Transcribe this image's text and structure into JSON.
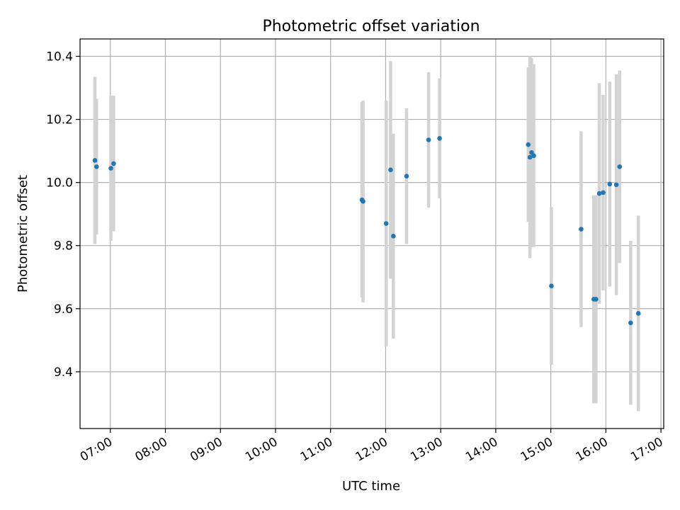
{
  "chart_data": {
    "type": "scatter",
    "title": "Photometric offset variation",
    "xlabel": "UTC time",
    "ylabel": "Photometric offset",
    "x_unit": "hours UTC",
    "xlim": [
      6.45,
      17.05
    ],
    "ylim": [
      9.22,
      10.455
    ],
    "x_ticks": [
      {
        "value": 7,
        "label": "07:00"
      },
      {
        "value": 8,
        "label": "08:00"
      },
      {
        "value": 9,
        "label": "09:00"
      },
      {
        "value": 10,
        "label": "10:00"
      },
      {
        "value": 11,
        "label": "11:00"
      },
      {
        "value": 12,
        "label": "12:00"
      },
      {
        "value": 13,
        "label": "13:00"
      },
      {
        "value": 14,
        "label": "14:00"
      },
      {
        "value": 15,
        "label": "15:00"
      },
      {
        "value": 16,
        "label": "16:00"
      },
      {
        "value": 17,
        "label": "17:00"
      }
    ],
    "y_ticks": [
      {
        "value": 9.4,
        "label": "9.4"
      },
      {
        "value": 9.6,
        "label": "9.6"
      },
      {
        "value": 9.8,
        "label": "9.8"
      },
      {
        "value": 10.0,
        "label": "10.0"
      },
      {
        "value": 10.2,
        "label": "10.2"
      },
      {
        "value": 10.4,
        "label": "10.4"
      }
    ],
    "grid": true,
    "marker_color": "#1f77b4",
    "errorbar_color": "#d3d3d3",
    "points": [
      {
        "x": 6.72,
        "y": 10.07,
        "err": 0.265
      },
      {
        "x": 6.75,
        "y": 10.05,
        "err": 0.215
      },
      {
        "x": 7.01,
        "y": 10.045,
        "err": 0.23
      },
      {
        "x": 7.06,
        "y": 10.06,
        "err": 0.215
      },
      {
        "x": 11.57,
        "y": 9.945,
        "err": 0.31
      },
      {
        "x": 11.59,
        "y": 9.94,
        "err": 0.32
      },
      {
        "x": 12.01,
        "y": 9.87,
        "err": 0.39
      },
      {
        "x": 12.09,
        "y": 10.04,
        "err": 0.345
      },
      {
        "x": 12.14,
        "y": 9.83,
        "err": 0.325
      },
      {
        "x": 12.38,
        "y": 10.02,
        "err": 0.215
      },
      {
        "x": 12.78,
        "y": 10.135,
        "err": 0.215
      },
      {
        "x": 12.98,
        "y": 10.14,
        "err": 0.19
      },
      {
        "x": 14.59,
        "y": 10.12,
        "err": 0.245
      },
      {
        "x": 14.62,
        "y": 10.08,
        "err": 0.32
      },
      {
        "x": 14.65,
        "y": 10.095,
        "err": 0.3
      },
      {
        "x": 14.69,
        "y": 10.085,
        "err": 0.29
      },
      {
        "x": 15.01,
        "y": 9.672,
        "err": 0.25
      },
      {
        "x": 15.55,
        "y": 9.852,
        "err": 0.31
      },
      {
        "x": 15.78,
        "y": 9.63,
        "err": 0.33
      },
      {
        "x": 15.82,
        "y": 9.63,
        "err": 0.33
      },
      {
        "x": 15.88,
        "y": 9.965,
        "err": 0.35
      },
      {
        "x": 15.95,
        "y": 9.968,
        "err": 0.31
      },
      {
        "x": 16.07,
        "y": 9.995,
        "err": 0.325
      },
      {
        "x": 16.19,
        "y": 9.993,
        "err": 0.35
      },
      {
        "x": 16.25,
        "y": 10.05,
        "err": 0.305
      },
      {
        "x": 16.45,
        "y": 9.555,
        "err": 0.26
      },
      {
        "x": 16.59,
        "y": 9.585,
        "err": 0.31
      }
    ]
  }
}
